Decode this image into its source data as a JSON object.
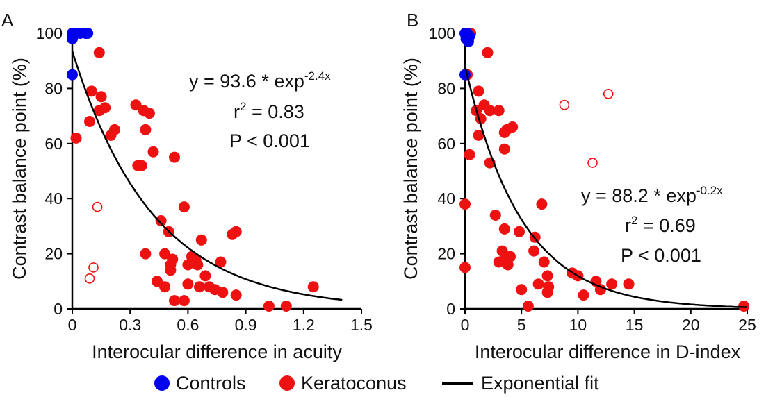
{
  "colors": {
    "controls": "#0000ee",
    "keratoconus": "#ee1111",
    "fit": "#000000"
  },
  "legend": {
    "controls": "Controls",
    "keratoconus": "Keratoconus",
    "fit": "Exponential fit"
  },
  "chart_data": [
    {
      "type": "scatter",
      "panel_label": "A",
      "xlabel": "Interocular difference in acuity",
      "ylabel": "Contrast balance point (%)",
      "xlim": [
        0,
        1.5
      ],
      "ylim": [
        0,
        100
      ],
      "xticks": [
        "0",
        "0.3",
        "0.6",
        "0.9",
        "1.2",
        "1.5"
      ],
      "yticks": [
        "0",
        "20",
        "40",
        "60",
        "80",
        "100"
      ],
      "annotation": {
        "eq_prefix": "y = 93.6 * exp",
        "eq_exponent": "-2.4x",
        "r2_prefix": "r",
        "r2_sup": "2",
        "r2_suffix": " = 0.83",
        "p": "P < 0.001"
      },
      "fit": {
        "a": 93.6,
        "b": -2.4,
        "x_range": [
          0,
          1.4
        ]
      },
      "series": [
        {
          "name": "Controls",
          "marker": "filled",
          "points": [
            [
              0,
              100
            ],
            [
              0,
              100
            ],
            [
              0,
              98
            ],
            [
              0.02,
              100
            ],
            [
              0.04,
              100
            ],
            [
              0.07,
              100
            ],
            [
              0.08,
              100
            ],
            [
              0,
              85
            ]
          ]
        },
        {
          "name": "Keratoconus",
          "marker": "filled",
          "points": [
            [
              0.14,
              93
            ],
            [
              0.1,
              79
            ],
            [
              0.15,
              77
            ],
            [
              0.14,
              72
            ],
            [
              0.17,
              73
            ],
            [
              0.09,
              68
            ],
            [
              0.22,
              65
            ],
            [
              0.2,
              63
            ],
            [
              0.02,
              62
            ],
            [
              0.33,
              74
            ],
            [
              0.37,
              72
            ],
            [
              0.4,
              71
            ],
            [
              0.38,
              65
            ],
            [
              0.42,
              57
            ],
            [
              0.34,
              52
            ],
            [
              0.36,
              52
            ],
            [
              0.53,
              55
            ],
            [
              0.58,
              37
            ],
            [
              0.46,
              32
            ],
            [
              0.5,
              28
            ],
            [
              0.67,
              25
            ],
            [
              0.83,
              27
            ],
            [
              0.85,
              28
            ],
            [
              0.38,
              20
            ],
            [
              0.48,
              20
            ],
            [
              0.52,
              18
            ],
            [
              0.51,
              16
            ],
            [
              0.51,
              14
            ],
            [
              0.44,
              10
            ],
            [
              0.48,
              8
            ],
            [
              0.53,
              3
            ],
            [
              0.58,
              3
            ],
            [
              0.6,
              9
            ],
            [
              0.6,
              16
            ],
            [
              0.62,
              19
            ],
            [
              0.64,
              18
            ],
            [
              0.65,
              16
            ],
            [
              0.66,
              8
            ],
            [
              0.69,
              12
            ],
            [
              0.71,
              8
            ],
            [
              0.74,
              7
            ],
            [
              0.77,
              17
            ],
            [
              0.78,
              6
            ],
            [
              0.85,
              5
            ],
            [
              1.02,
              1
            ],
            [
              1.11,
              1
            ],
            [
              1.25,
              8
            ]
          ]
        },
        {
          "name": "Keratoconus (open)",
          "marker": "open",
          "points": [
            [
              0.13,
              37
            ],
            [
              0.11,
              15
            ],
            [
              0.09,
              11
            ]
          ]
        }
      ]
    },
    {
      "type": "scatter",
      "panel_label": "B",
      "xlabel": "Interocular difference in D-index",
      "ylabel": "Contrast balance point (%)",
      "xlim": [
        0,
        25
      ],
      "ylim": [
        0,
        100
      ],
      "xticks": [
        "0",
        "5",
        "10",
        "15",
        "20",
        "25"
      ],
      "yticks": [
        "0",
        "20",
        "40",
        "60",
        "80",
        "100"
      ],
      "annotation": {
        "eq_prefix": "y = 88.2 * exp",
        "eq_exponent": "-0.2x",
        "r2_prefix": "r",
        "r2_sup": "2",
        "r2_suffix": " = 0.69",
        "p": "P < 0.001"
      },
      "fit": {
        "a": 88.2,
        "b": -0.2,
        "x_range": [
          0,
          25
        ]
      },
      "series": [
        {
          "name": "Controls",
          "marker": "filled",
          "points": [
            [
              0,
              100
            ],
            [
              0.2,
              100
            ],
            [
              0.4,
              99
            ],
            [
              0.1,
              98
            ],
            [
              0.3,
              97
            ],
            [
              0,
              85
            ]
          ]
        },
        {
          "name": "Keratoconus",
          "marker": "filled",
          "points": [
            [
              0.5,
              100
            ],
            [
              2,
              93
            ],
            [
              0.2,
              85
            ],
            [
              1.2,
              79
            ],
            [
              1.7,
              74
            ],
            [
              2.2,
              72
            ],
            [
              3,
              72
            ],
            [
              1,
              72
            ],
            [
              1.4,
              69
            ],
            [
              1.2,
              63
            ],
            [
              3.7,
              65
            ],
            [
              4.2,
              66
            ],
            [
              3.5,
              64
            ],
            [
              3.5,
              58
            ],
            [
              0.4,
              56
            ],
            [
              2.2,
              53
            ],
            [
              0,
              38
            ],
            [
              6.8,
              38
            ],
            [
              2.7,
              34
            ],
            [
              3.5,
              29
            ],
            [
              4.8,
              28
            ],
            [
              6.2,
              26
            ],
            [
              6.1,
              21
            ],
            [
              3.3,
              21
            ],
            [
              4,
              19
            ],
            [
              3.5,
              18
            ],
            [
              3,
              17
            ],
            [
              3.8,
              16
            ],
            [
              7.3,
              12
            ],
            [
              7,
              17
            ],
            [
              9.5,
              13
            ],
            [
              10,
              12
            ],
            [
              6.5,
              9
            ],
            [
              7.4,
              8
            ],
            [
              7.3,
              6
            ],
            [
              5,
              7
            ],
            [
              5.6,
              1
            ],
            [
              10.5,
              5
            ],
            [
              11.6,
              10
            ],
            [
              12,
              7
            ],
            [
              13,
              9
            ],
            [
              14.5,
              9
            ],
            [
              0,
              15
            ],
            [
              24.7,
              1
            ]
          ]
        },
        {
          "name": "Keratoconus (open)",
          "marker": "open",
          "points": [
            [
              8.8,
              74
            ],
            [
              12.7,
              78
            ],
            [
              11.3,
              53
            ]
          ]
        }
      ]
    }
  ]
}
